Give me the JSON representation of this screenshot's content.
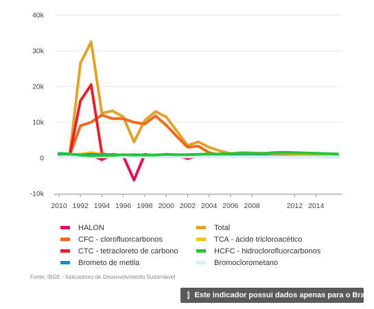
{
  "chart_data": {
    "type": "line",
    "title": "",
    "xlabel": "",
    "ylabel": "",
    "ylim": [
      -10000,
      40000
    ],
    "xlim": [
      2010,
      2015
    ],
    "x_ticks": [
      "2010",
      "1992",
      "1994",
      "1996",
      "1998",
      "2000",
      "2002",
      "2004",
      "2006",
      "2008",
      "2012",
      "2014"
    ],
    "y_ticks": [
      {
        "value": 40000,
        "label": "40k"
      },
      {
        "value": 30000,
        "label": "30k"
      },
      {
        "value": 20000,
        "label": "20k"
      },
      {
        "value": 10000,
        "label": "10k"
      },
      {
        "value": 0,
        "label": "0"
      },
      {
        "value": -10000,
        "label": "-10k"
      }
    ],
    "x_positions": [
      0,
      1,
      2,
      3,
      4,
      5,
      6,
      7,
      8,
      9,
      10,
      11,
      12,
      13,
      14,
      15,
      16,
      17,
      18,
      19,
      20,
      21,
      22,
      23,
      24,
      25,
      26
    ],
    "grid": "horizontal",
    "legend_position": "bottom",
    "series": [
      {
        "name": "Total",
        "color": "#e0a42e",
        "values": [
          1200,
          800,
          26500,
          32500,
          12500,
          13200,
          11500,
          4500,
          10500,
          13000,
          11500,
          7500,
          3500,
          4500,
          3000,
          2000,
          1200,
          1500,
          1400,
          1300,
          1400,
          1300,
          1200,
          1300,
          1200,
          1100,
          900
        ]
      },
      {
        "name": "CFC - clorofluorcarbonos",
        "color": "#f26a1b",
        "values": [
          1000,
          800,
          9000,
          10000,
          12000,
          11000,
          11000,
          10000,
          9500,
          11800,
          9200,
          6000,
          3000,
          3300,
          1500,
          800,
          600,
          500,
          500,
          400,
          400,
          300,
          300,
          300,
          300,
          300,
          300
        ]
      },
      {
        "name": "CTC - tetracloreto de carbono",
        "color": "#e8222b",
        "values": [
          1000,
          800,
          16000,
          20500,
          1200,
          700,
          700,
          700,
          700,
          700,
          700,
          700,
          700,
          700,
          700,
          700,
          700,
          700,
          700,
          700,
          700,
          700,
          700,
          700,
          700,
          700,
          700
        ]
      },
      {
        "name": "HALON",
        "color": "#e2105a",
        "values": [
          900,
          800,
          600,
          800,
          -500,
          1000,
          500,
          -6200,
          1000,
          600,
          900,
          800,
          -200,
          700,
          800,
          800,
          700,
          700,
          700,
          700,
          700,
          700,
          700,
          700,
          700,
          700,
          700
        ]
      },
      {
        "name": "TCA - ácido tricloroacético",
        "color": "#f5c400",
        "values": [
          900,
          800,
          1000,
          1500,
          1000,
          800,
          700,
          700,
          700,
          700,
          700,
          700,
          700,
          700,
          700,
          700,
          700,
          700,
          700,
          700,
          700,
          700,
          700,
          700,
          700,
          700,
          700
        ]
      },
      {
        "name": "Brometo de metila",
        "color": "#1a8ad4",
        "values": [
          1000,
          900,
          800,
          1000,
          900,
          900,
          800,
          900,
          800,
          800,
          800,
          800,
          700,
          700,
          700,
          700,
          600,
          600,
          500,
          500,
          500,
          500,
          400,
          400,
          400,
          300,
          300
        ]
      },
      {
        "name": "Bromoclorometano",
        "color": "#d6f0f7",
        "values": [
          300,
          300,
          300,
          300,
          300,
          300,
          300,
          300,
          300,
          300,
          300,
          300,
          300,
          300,
          300,
          300,
          300,
          300,
          300,
          300,
          300,
          300,
          300,
          300,
          300,
          300,
          300
        ]
      },
      {
        "name": "HCFC - hidroclorofluorcarbonos",
        "color": "#27c43b",
        "values": [
          1300,
          1100,
          800,
          600,
          700,
          700,
          900,
          800,
          800,
          800,
          1000,
          900,
          900,
          1000,
          1100,
          1100,
          1200,
          1300,
          1300,
          1200,
          1500,
          1600,
          1500,
          1400,
          1300,
          1200,
          1100
        ]
      }
    ],
    "legend": [
      {
        "label": "HALON",
        "color": "#e2105a"
      },
      {
        "label": "Total",
        "color": "#e0a42e"
      },
      {
        "label": "CFC - clorofluorcarbonos",
        "color": "#f26a1b"
      },
      {
        "label": "TCA - ácido tricloroacético",
        "color": "#f5c400"
      },
      {
        "label": "CTC - tetracloreto de carbono",
        "color": "#e8222b"
      },
      {
        "label": "HCFC - hidroclorofluorcarbonos",
        "color": "#27c43b"
      },
      {
        "label": "Brometo de metila",
        "color": "#1a8ad4"
      },
      {
        "label": "Bromoclorometano",
        "color": "#d6f0f7"
      }
    ]
  },
  "source": "Fonte: IBGE - Indicadores de Desenvolvimento Sustentavel",
  "notice": {
    "icon": "info-icon",
    "text": "Este indicador possui dados apenas para o Brasil"
  }
}
